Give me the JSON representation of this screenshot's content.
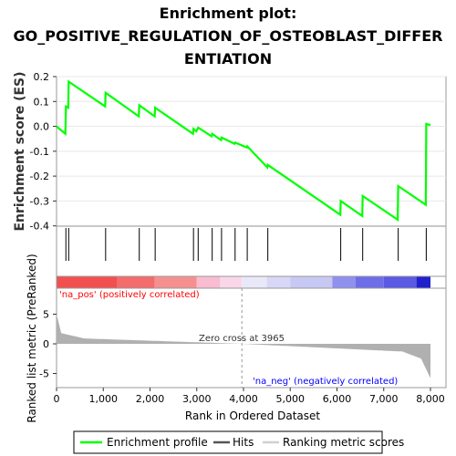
{
  "chart_data": {
    "type": "line",
    "title_line1": "Enrichment plot:",
    "title_line2": "GO_POSITIVE_REGULATION_OF_OSTEOBLAST_DIFFER",
    "title_line3": "ENTIATION",
    "es_ylabel": "Enrichment score (ES)",
    "es_yticks": [
      "0.2",
      "0.1",
      "0.0",
      "-0.1",
      "-0.2",
      "-0.3",
      "-0.4"
    ],
    "es_ylim": [
      -0.4,
      0.2
    ],
    "xlabel": "Rank in Ordered Dataset",
    "xticks": [
      "0",
      "1,000",
      "2,000",
      "3,000",
      "4,000",
      "5,000",
      "6,000",
      "7,000",
      "8,000"
    ],
    "xlim": [
      0,
      8000
    ],
    "rank_ylabel": "Ranked list metric (PreRanked)",
    "rank_yticks": [
      "5",
      "0",
      "-5"
    ],
    "zero_cross_label": "Zero cross at 3965",
    "zero_cross": 3965,
    "pos_label": "'na_pos' (positively correlated)",
    "neg_label": "'na_neg' (negatively correlated)",
    "hits": [
      200,
      260,
      1050,
      1770,
      2110,
      2930,
      3030,
      3330,
      3530,
      3820,
      4080,
      4520,
      6080,
      6550,
      7310,
      7910
    ],
    "es_curve": [
      [
        0,
        0.0
      ],
      [
        190,
        -0.03
      ],
      [
        200,
        0.08
      ],
      [
        250,
        0.075
      ],
      [
        260,
        0.18
      ],
      [
        1040,
        0.08
      ],
      [
        1050,
        0.135
      ],
      [
        1760,
        0.04
      ],
      [
        1770,
        0.085
      ],
      [
        2100,
        0.04
      ],
      [
        2110,
        0.075
      ],
      [
        2920,
        -0.03
      ],
      [
        2930,
        -0.01
      ],
      [
        2990,
        -0.02
      ],
      [
        3030,
        -0.005
      ],
      [
        3320,
        -0.04
      ],
      [
        3330,
        -0.03
      ],
      [
        3520,
        -0.055
      ],
      [
        3530,
        -0.045
      ],
      [
        3810,
        -0.07
      ],
      [
        3820,
        -0.065
      ],
      [
        4070,
        -0.085
      ],
      [
        4080,
        -0.08
      ],
      [
        4510,
        -0.165
      ],
      [
        4520,
        -0.155
      ],
      [
        6070,
        -0.355
      ],
      [
        6080,
        -0.3
      ],
      [
        6540,
        -0.36
      ],
      [
        6550,
        -0.28
      ],
      [
        7300,
        -0.375
      ],
      [
        7310,
        -0.24
      ],
      [
        7900,
        -0.315
      ],
      [
        7910,
        0.01
      ],
      [
        8000,
        0.005
      ]
    ],
    "series": [
      {
        "name": "Enrichment profile",
        "color": "#00ff00"
      },
      {
        "name": "Hits",
        "color": "#000000"
      },
      {
        "name": "Ranking metric scores",
        "color": "#c0c0c0"
      }
    ]
  },
  "colors": {
    "es_line": "#00ff00",
    "pos_label": "#ff0000",
    "neg_label": "#0000ff",
    "metric_fill": "#b0b0b0"
  }
}
